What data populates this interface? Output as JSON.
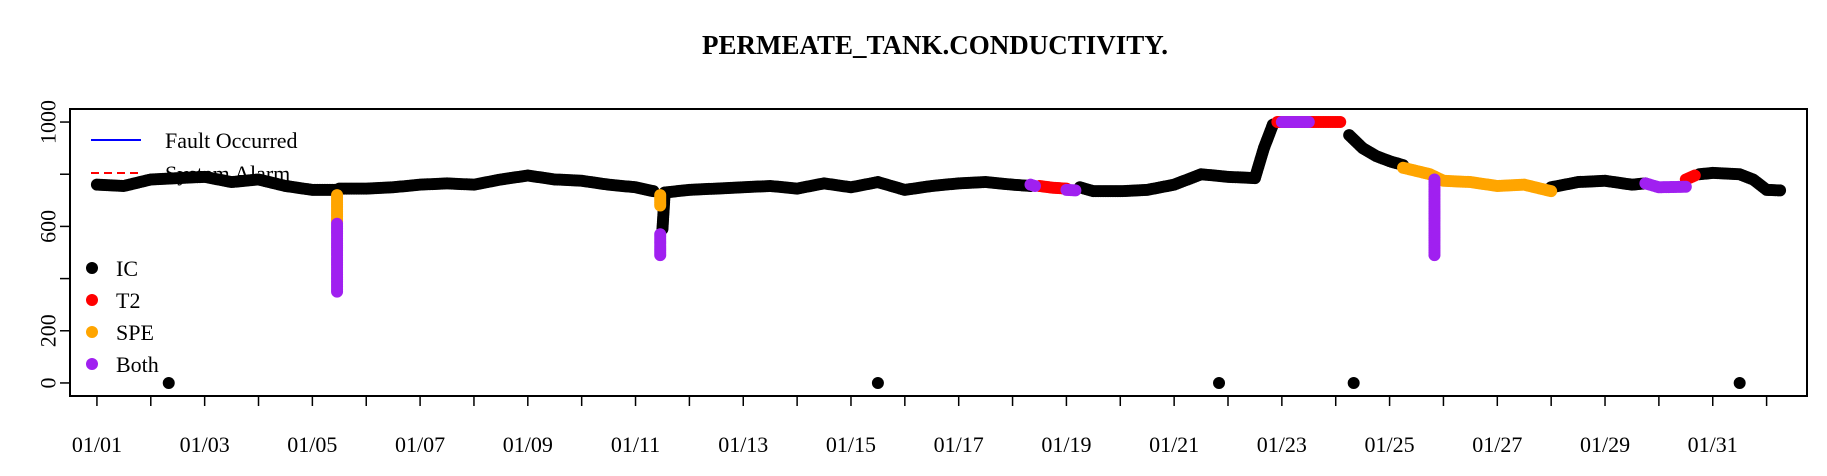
{
  "chart_data": {
    "type": "scatter",
    "title": "PERMEATE_TANK.CONDUCTIVITY.",
    "xlabel": "",
    "ylabel": "",
    "x_type": "date",
    "xlim": [
      "2024-12-31T12:00",
      "2025-02-01T18:00"
    ],
    "ylim": [
      -50,
      1050
    ],
    "x_ticks": [
      "2025-01-01",
      "2025-01-02",
      "2025-01-03",
      "2025-01-04",
      "2025-01-05",
      "2025-01-06",
      "2025-01-07",
      "2025-01-08",
      "2025-01-09",
      "2025-01-10",
      "2025-01-11",
      "2025-01-12",
      "2025-01-13",
      "2025-01-14",
      "2025-01-15",
      "2025-01-16",
      "2025-01-17",
      "2025-01-18",
      "2025-01-19",
      "2025-01-20",
      "2025-01-21",
      "2025-01-22",
      "2025-01-23",
      "2025-01-24",
      "2025-01-25",
      "2025-01-26",
      "2025-01-27",
      "2025-01-28",
      "2025-01-29",
      "2025-01-30",
      "2025-01-31",
      "2025-02-01"
    ],
    "x_tick_labels": [
      "01/01",
      "",
      "01/03",
      "",
      "01/05",
      "",
      "01/07",
      "",
      "01/09",
      "",
      "01/11",
      "",
      "01/13",
      "",
      "01/15",
      "",
      "01/17",
      "",
      "01/19",
      "",
      "01/21",
      "",
      "01/23",
      "",
      "01/25",
      "",
      "01/27",
      "",
      "01/29",
      "",
      "01/31",
      ""
    ],
    "y_ticks": [
      0,
      200,
      400,
      600,
      800,
      1000
    ],
    "y_tick_labels": [
      "0",
      "200",
      "",
      "600",
      "",
      "1000"
    ],
    "grid": false,
    "legend_top": {
      "position": "top-left",
      "entries": [
        {
          "label": "Fault Occurred",
          "color": "#0000ff",
          "style": "solid"
        },
        {
          "label": "System Alarm",
          "color": "#ff0000",
          "style": "dashed"
        }
      ]
    },
    "legend_points": {
      "position": "left",
      "entries": [
        {
          "label": "IC",
          "color": "#000000"
        },
        {
          "label": "T2",
          "color": "#ff0000"
        },
        {
          "label": "SPE",
          "color": "#ffa500"
        },
        {
          "label": "Both",
          "color": "#a020f0"
        }
      ]
    },
    "series": [
      {
        "name": "IC",
        "color": "#000000",
        "segments": [
          [
            [
              "2025-01-01T00:00",
              760
            ],
            [
              "2025-01-01T12:00",
              755
            ],
            [
              "2025-01-02T00:00",
              780
            ],
            [
              "2025-01-02T12:00",
              785
            ],
            [
              "2025-01-03T00:00",
              790
            ],
            [
              "2025-01-03T12:00",
              770
            ],
            [
              "2025-01-04T00:00",
              780
            ],
            [
              "2025-01-04T12:00",
              755
            ],
            [
              "2025-01-05T00:00",
              740
            ],
            [
              "2025-01-05T10:00",
              740
            ]
          ],
          [
            [
              "2025-01-05T12:00",
              745
            ],
            [
              "2025-01-06T00:00",
              745
            ],
            [
              "2025-01-06T12:00",
              750
            ],
            [
              "2025-01-07T00:00",
              760
            ],
            [
              "2025-01-07T12:00",
              765
            ],
            [
              "2025-01-08T00:00",
              760
            ],
            [
              "2025-01-08T12:00",
              780
            ],
            [
              "2025-01-09T00:00",
              795
            ],
            [
              "2025-01-09T12:00",
              780
            ],
            [
              "2025-01-10T00:00",
              775
            ],
            [
              "2025-01-10T12:00",
              760
            ],
            [
              "2025-01-11T00:00",
              750
            ],
            [
              "2025-01-11T08:00",
              735
            ]
          ],
          [
            [
              "2025-01-11T12:00",
              590
            ],
            [
              "2025-01-11T13:00",
              730
            ],
            [
              "2025-01-12T00:00",
              740
            ],
            [
              "2025-01-12T12:00",
              745
            ],
            [
              "2025-01-13T00:00",
              750
            ],
            [
              "2025-01-13T12:00",
              755
            ],
            [
              "2025-01-14T00:00",
              745
            ],
            [
              "2025-01-14T12:00",
              765
            ],
            [
              "2025-01-15T00:00",
              750
            ],
            [
              "2025-01-15T12:00",
              770
            ],
            [
              "2025-01-16T00:00",
              740
            ],
            [
              "2025-01-16T12:00",
              755
            ],
            [
              "2025-01-17T00:00",
              765
            ],
            [
              "2025-01-17T12:00",
              770
            ],
            [
              "2025-01-18T00:00",
              760
            ],
            [
              "2025-01-18T08:00",
              755
            ]
          ],
          [
            [
              "2025-01-19T06:00",
              750
            ],
            [
              "2025-01-19T12:00",
              735
            ],
            [
              "2025-01-20T00:00",
              735
            ],
            [
              "2025-01-20T12:00",
              740
            ],
            [
              "2025-01-21T00:00",
              760
            ],
            [
              "2025-01-21T12:00",
              800
            ],
            [
              "2025-01-22T00:00",
              790
            ],
            [
              "2025-01-22T12:00",
              785
            ],
            [
              "2025-01-22T16:00",
              900
            ],
            [
              "2025-01-22T20:00",
              990
            ]
          ],
          [
            [
              "2025-01-24T06:00",
              950
            ],
            [
              "2025-01-24T12:00",
              900
            ],
            [
              "2025-01-24T18:00",
              870
            ],
            [
              "2025-01-25T00:00",
              850
            ],
            [
              "2025-01-25T06:00",
              835
            ]
          ],
          [
            [
              "2025-01-28T00:00",
              750
            ],
            [
              "2025-01-28T12:00",
              770
            ],
            [
              "2025-01-29T00:00",
              775
            ],
            [
              "2025-01-29T12:00",
              760
            ],
            [
              "2025-01-29T18:00",
              765
            ]
          ],
          [
            [
              "2025-01-30T18:00",
              800
            ],
            [
              "2025-01-31T00:00",
              805
            ],
            [
              "2025-01-31T12:00",
              800
            ],
            [
              "2025-01-31T18:00",
              780
            ],
            [
              "2025-02-01T00:00",
              740
            ],
            [
              "2025-02-01T06:00",
              738
            ]
          ]
        ]
      },
      {
        "name": "T2",
        "color": "#ff0000",
        "segments": [
          [
            [
              "2025-01-18T12:00",
              755
            ],
            [
              "2025-01-18T18:00",
              748
            ],
            [
              "2025-01-19T00:00",
              745
            ]
          ],
          [
            [
              "2025-01-22T22:00",
              1000
            ],
            [
              "2025-01-24T02:00",
              1000
            ]
          ],
          [
            [
              "2025-01-30T12:00",
              780
            ],
            [
              "2025-01-30T16:00",
              795
            ]
          ]
        ]
      },
      {
        "name": "SPE",
        "color": "#ffa500",
        "segments": [
          [
            [
              "2025-01-05T11:00",
              720
            ],
            [
              "2025-01-05T11:00",
              620
            ]
          ],
          [
            [
              "2025-01-11T11:00",
              720
            ],
            [
              "2025-01-11T11:00",
              680
            ]
          ],
          [
            [
              "2025-01-25T06:00",
              825
            ],
            [
              "2025-01-25T18:00",
              800
            ],
            [
              "2025-01-26T00:00",
              775
            ],
            [
              "2025-01-26T12:00",
              770
            ],
            [
              "2025-01-27T00:00",
              755
            ],
            [
              "2025-01-27T12:00",
              760
            ],
            [
              "2025-01-28T00:00",
              735
            ]
          ]
        ]
      },
      {
        "name": "Both",
        "color": "#a020f0",
        "segments": [
          [
            [
              "2025-01-05T11:00",
              610
            ],
            [
              "2025-01-05T11:00",
              350
            ]
          ],
          [
            [
              "2025-01-11T11:00",
              570
            ],
            [
              "2025-01-11T11:00",
              490
            ]
          ],
          [
            [
              "2025-01-18T08:00",
              760
            ],
            [
              "2025-01-18T10:00",
              755
            ]
          ],
          [
            [
              "2025-01-19T00:00",
              740
            ],
            [
              "2025-01-19T04:00",
              738
            ]
          ],
          [
            [
              "2025-01-23T00:00",
              1000
            ],
            [
              "2025-01-23T12:00",
              1000
            ]
          ],
          [
            [
              "2025-01-25T20:00",
              780
            ],
            [
              "2025-01-25T20:00",
              490
            ]
          ],
          [
            [
              "2025-01-29T18:00",
              765
            ],
            [
              "2025-01-30T00:00",
              750
            ],
            [
              "2025-01-30T12:00",
              752
            ]
          ]
        ]
      }
    ],
    "zero_points": [
      {
        "x": "2025-01-02T08:00",
        "y": 0,
        "color": "#000000"
      },
      {
        "x": "2025-01-15T12:00",
        "y": 0,
        "color": "#000000"
      },
      {
        "x": "2025-01-21T20:00",
        "y": 0,
        "color": "#000000"
      },
      {
        "x": "2025-01-24T08:00",
        "y": 0,
        "color": "#000000"
      },
      {
        "x": "2025-01-31T12:00",
        "y": 0,
        "color": "#000000"
      }
    ]
  }
}
